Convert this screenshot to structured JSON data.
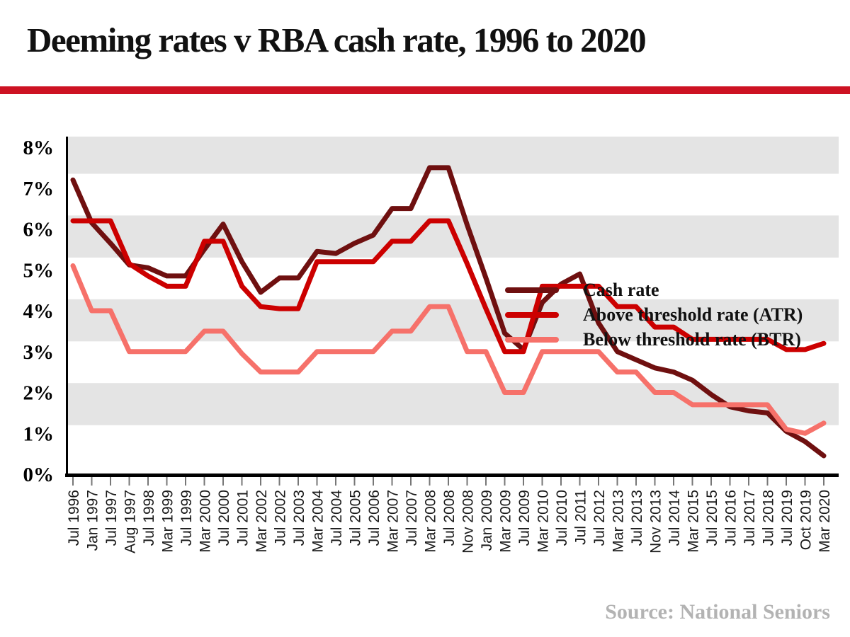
{
  "header": {
    "title": "Deeming rates v RBA cash rate, 1996 to 2020",
    "rule_color": "#cd1223"
  },
  "chart_data": {
    "type": "line",
    "title": "Deeming rates v RBA cash rate, 1996 to 2020",
    "xlabel": "",
    "ylabel": "",
    "ylim": [
      0,
      8.28
    ],
    "grid": false,
    "legend_position": "top-right",
    "band_color": "#e4e4e4",
    "y_ticks": [
      "0%",
      "1%",
      "2%",
      "3%",
      "4%",
      "5%",
      "6%",
      "7%",
      "8%"
    ],
    "gray_bands_pct": [
      [
        7.35,
        8.28
      ],
      [
        5.3,
        6.33
      ],
      [
        3.25,
        4.28
      ],
      [
        1.2,
        2.23
      ]
    ],
    "categories": [
      "Jul 1996",
      "Jan 1997",
      "Jul 1997",
      "Aug 1997",
      "Jul 1998",
      "Mar 1999",
      "Jul 1999",
      "Mar 2000",
      "Jul 2000",
      "Jul 2001",
      "Mar 2002",
      "Jul 2002",
      "Jul 2003",
      "Mar 2004",
      "Jul 2004",
      "Jul 2005",
      "Jul 2006",
      "Mar 2007",
      "Jul 2007",
      "Mar 2008",
      "Jul 2008",
      "Nov 2008",
      "Jan 2009",
      "Mar 2009",
      "Jul 2009",
      "Mar 2010",
      "Jul 2010",
      "Jul 2011",
      "Jul 2012",
      "Mar 2013",
      "Jul 2013",
      "Nov 2013",
      "Jul 2014",
      "Mar 2015",
      "Jul 2015",
      "Jul 2016",
      "Jul 2017",
      "Jul 2018",
      "Jul 2019",
      "Oct 2019",
      "Mar 2020"
    ],
    "series": [
      {
        "name": "Cash rate",
        "color": "#6f1010",
        "values": [
          7.2,
          6.15,
          5.65,
          5.12,
          5.05,
          4.85,
          4.85,
          5.5,
          6.12,
          5.2,
          4.45,
          4.8,
          4.8,
          5.45,
          5.4,
          5.65,
          5.85,
          6.5,
          6.5,
          7.5,
          7.5,
          6.1,
          4.8,
          3.45,
          3.05,
          4.2,
          4.65,
          4.9,
          3.7,
          3.0,
          2.8,
          2.6,
          2.5,
          2.3,
          1.95,
          1.65,
          1.55,
          1.5,
          1.05,
          0.8,
          0.45
        ]
      },
      {
        "name": "Above threshold rate (ATR)",
        "color": "#cc0000",
        "values": [
          6.2,
          6.2,
          6.2,
          5.15,
          4.85,
          4.6,
          4.6,
          5.7,
          5.7,
          4.6,
          4.1,
          4.05,
          4.05,
          5.2,
          5.2,
          5.2,
          5.2,
          5.7,
          5.7,
          6.2,
          6.2,
          5.15,
          4.05,
          3.0,
          3.0,
          4.6,
          4.6,
          4.6,
          4.6,
          4.1,
          4.1,
          3.6,
          3.6,
          3.3,
          3.3,
          3.3,
          3.3,
          3.3,
          3.05,
          3.05,
          3.2
        ]
      },
      {
        "name": "Below threshold rate (BTR)",
        "color": "#f6716a",
        "values": [
          5.1,
          4.0,
          4.0,
          3.0,
          3.0,
          3.0,
          3.0,
          3.5,
          3.5,
          2.95,
          2.5,
          2.5,
          2.5,
          3.0,
          3.0,
          3.0,
          3.0,
          3.5,
          3.5,
          4.1,
          4.1,
          3.0,
          3.0,
          2.0,
          2.0,
          3.0,
          3.0,
          3.0,
          3.0,
          2.5,
          2.5,
          2.0,
          2.0,
          1.7,
          1.7,
          1.7,
          1.7,
          1.7,
          1.1,
          1.0,
          1.25
        ]
      }
    ]
  },
  "source": {
    "label": "Source: National Seniors"
  }
}
